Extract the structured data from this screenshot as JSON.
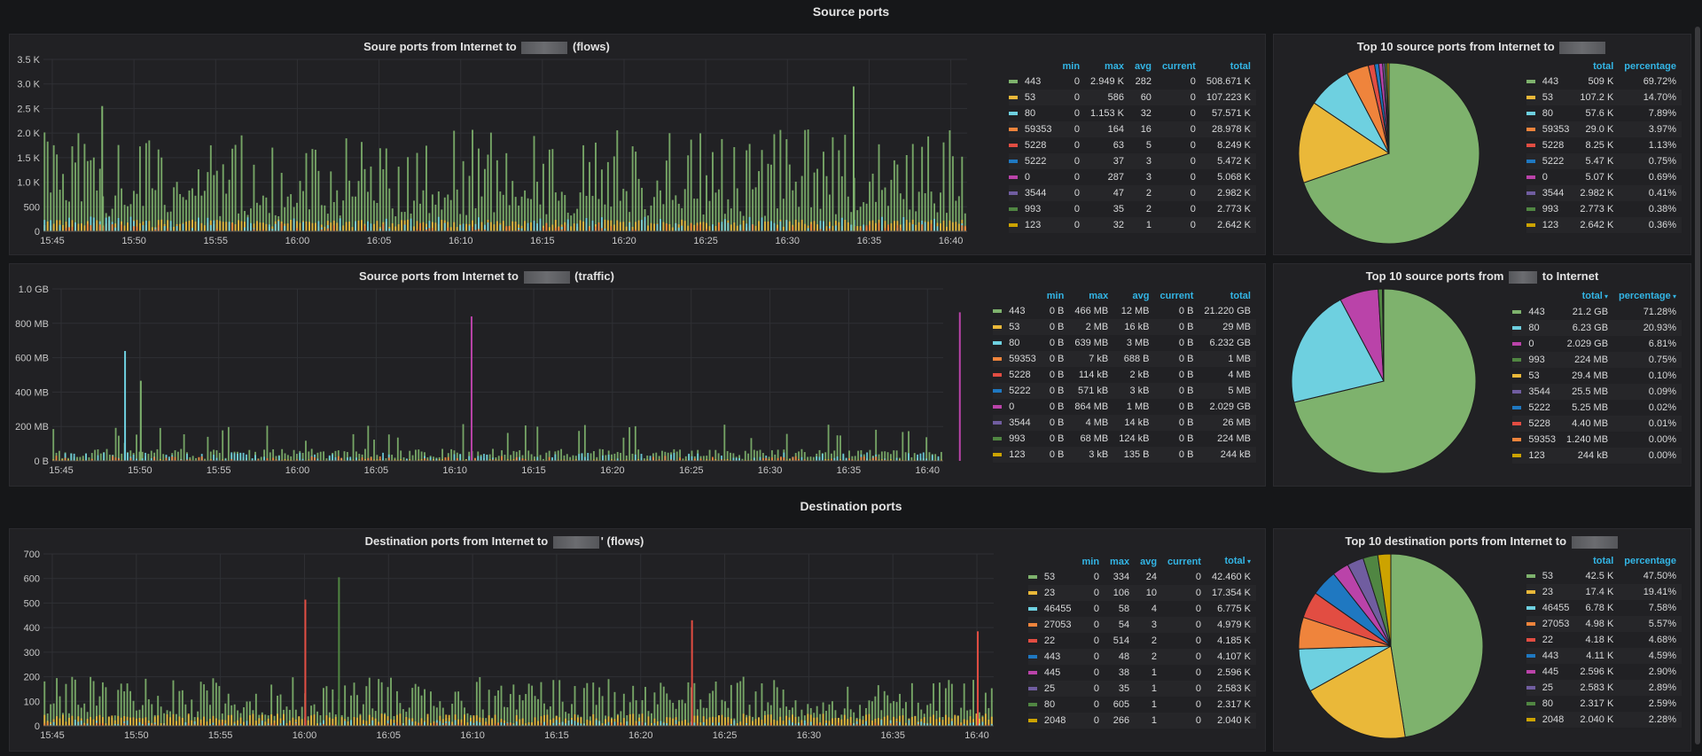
{
  "rows": {
    "source_title": "Source ports",
    "dest_title": "Destination ports"
  },
  "panels": {
    "src_flows": {
      "title_a": "Soure ports from Internet to",
      "title_b": "(flows)",
      "headers": [
        "min",
        "max",
        "avg",
        "current",
        "total"
      ],
      "rows": [
        {
          "name": "443",
          "min": "0",
          "max": "2.949 K",
          "avg": "282",
          "current": "0",
          "total": "508.671 K"
        },
        {
          "name": "53",
          "min": "0",
          "max": "586",
          "avg": "60",
          "current": "0",
          "total": "107.223 K"
        },
        {
          "name": "80",
          "min": "0",
          "max": "1.153 K",
          "avg": "32",
          "current": "0",
          "total": "57.571 K"
        },
        {
          "name": "59353",
          "min": "0",
          "max": "164",
          "avg": "16",
          "current": "0",
          "total": "28.978 K"
        },
        {
          "name": "5228",
          "min": "0",
          "max": "63",
          "avg": "5",
          "current": "0",
          "total": "8.249 K"
        },
        {
          "name": "5222",
          "min": "0",
          "max": "37",
          "avg": "3",
          "current": "0",
          "total": "5.472 K"
        },
        {
          "name": "0",
          "min": "0",
          "max": "287",
          "avg": "3",
          "current": "0",
          "total": "5.068 K"
        },
        {
          "name": "3544",
          "min": "0",
          "max": "47",
          "avg": "2",
          "current": "0",
          "total": "2.982 K"
        },
        {
          "name": "993",
          "min": "0",
          "max": "35",
          "avg": "2",
          "current": "0",
          "total": "2.773 K"
        },
        {
          "name": "123",
          "min": "0",
          "max": "32",
          "avg": "1",
          "current": "0",
          "total": "2.642 K"
        }
      ]
    },
    "src_traffic": {
      "title_a": "Source ports from Internet to",
      "title_b": "(traffic)",
      "headers": [
        "min",
        "max",
        "avg",
        "current",
        "total"
      ],
      "rows": [
        {
          "name": "443",
          "min": "0 B",
          "max": "466 MB",
          "avg": "12 MB",
          "current": "0 B",
          "total": "21.220 GB"
        },
        {
          "name": "53",
          "min": "0 B",
          "max": "2 MB",
          "avg": "16 kB",
          "current": "0 B",
          "total": "29 MB"
        },
        {
          "name": "80",
          "min": "0 B",
          "max": "639 MB",
          "avg": "3 MB",
          "current": "0 B",
          "total": "6.232 GB"
        },
        {
          "name": "59353",
          "min": "0 B",
          "max": "7 kB",
          "avg": "688 B",
          "current": "0 B",
          "total": "1 MB"
        },
        {
          "name": "5228",
          "min": "0 B",
          "max": "114 kB",
          "avg": "2 kB",
          "current": "0 B",
          "total": "4 MB"
        },
        {
          "name": "5222",
          "min": "0 B",
          "max": "571 kB",
          "avg": "3 kB",
          "current": "0 B",
          "total": "5 MB"
        },
        {
          "name": "0",
          "min": "0 B",
          "max": "864 MB",
          "avg": "1 MB",
          "current": "0 B",
          "total": "2.029 GB"
        },
        {
          "name": "3544",
          "min": "0 B",
          "max": "4 MB",
          "avg": "14 kB",
          "current": "0 B",
          "total": "26 MB"
        },
        {
          "name": "993",
          "min": "0 B",
          "max": "68 MB",
          "avg": "124 kB",
          "current": "0 B",
          "total": "224 MB"
        },
        {
          "name": "123",
          "min": "0 B",
          "max": "3 kB",
          "avg": "135 B",
          "current": "0 B",
          "total": "244 kB"
        }
      ]
    },
    "dst_flows": {
      "title_a": "Destination ports from Internet to",
      "title_b": "' (flows)",
      "headers": [
        "min",
        "max",
        "avg",
        "current",
        "total"
      ],
      "sort_mark": "▾",
      "rows": [
        {
          "name": "53",
          "min": "0",
          "max": "334",
          "avg": "24",
          "current": "0",
          "total": "42.460 K"
        },
        {
          "name": "23",
          "min": "0",
          "max": "106",
          "avg": "10",
          "current": "0",
          "total": "17.354 K"
        },
        {
          "name": "46455",
          "min": "0",
          "max": "58",
          "avg": "4",
          "current": "0",
          "total": "6.775 K"
        },
        {
          "name": "27053",
          "min": "0",
          "max": "54",
          "avg": "3",
          "current": "0",
          "total": "4.979 K"
        },
        {
          "name": "22",
          "min": "0",
          "max": "514",
          "avg": "2",
          "current": "0",
          "total": "4.185 K"
        },
        {
          "name": "443",
          "min": "0",
          "max": "48",
          "avg": "2",
          "current": "0",
          "total": "4.107 K"
        },
        {
          "name": "445",
          "min": "0",
          "max": "38",
          "avg": "1",
          "current": "0",
          "total": "2.596 K"
        },
        {
          "name": "25",
          "min": "0",
          "max": "35",
          "avg": "1",
          "current": "0",
          "total": "2.583 K"
        },
        {
          "name": "80",
          "min": "0",
          "max": "605",
          "avg": "1",
          "current": "0",
          "total": "2.317 K"
        },
        {
          "name": "2048",
          "min": "0",
          "max": "266",
          "avg": "1",
          "current": "0",
          "total": "2.040 K"
        }
      ]
    },
    "pie_src_in": {
      "title_a": "Top 10 source ports from Internet to",
      "title_b": "",
      "headers": [
        "total",
        "percentage"
      ],
      "rows": [
        {
          "name": "443",
          "total": "509 K",
          "percentage": "69.72%"
        },
        {
          "name": "53",
          "total": "107.2 K",
          "percentage": "14.70%"
        },
        {
          "name": "80",
          "total": "57.6 K",
          "percentage": "7.89%"
        },
        {
          "name": "59353",
          "total": "29.0 K",
          "percentage": "3.97%"
        },
        {
          "name": "5228",
          "total": "8.25 K",
          "percentage": "1.13%"
        },
        {
          "name": "5222",
          "total": "5.47 K",
          "percentage": "0.75%"
        },
        {
          "name": "0",
          "total": "5.07 K",
          "percentage": "0.69%"
        },
        {
          "name": "3544",
          "total": "2.982 K",
          "percentage": "0.41%"
        },
        {
          "name": "993",
          "total": "2.773 K",
          "percentage": "0.38%"
        },
        {
          "name": "123",
          "total": "2.642 K",
          "percentage": "0.36%"
        }
      ]
    },
    "pie_src_out": {
      "title_a": "Top 10 source ports from",
      "title_b": "to Internet",
      "headers": [
        "total",
        "percentage"
      ],
      "sort_mark": "▾",
      "rows": [
        {
          "name": "443",
          "total": "21.2 GB",
          "percentage": "71.28%"
        },
        {
          "name": "80",
          "total": "6.23 GB",
          "percentage": "20.93%"
        },
        {
          "name": "0",
          "total": "2.029 GB",
          "percentage": "6.81%"
        },
        {
          "name": "993",
          "total": "224 MB",
          "percentage": "0.75%"
        },
        {
          "name": "53",
          "total": "29.4 MB",
          "percentage": "0.10%"
        },
        {
          "name": "3544",
          "total": "25.5 MB",
          "percentage": "0.09%"
        },
        {
          "name": "5222",
          "total": "5.25 MB",
          "percentage": "0.02%"
        },
        {
          "name": "5228",
          "total": "4.40 MB",
          "percentage": "0.01%"
        },
        {
          "name": "59353",
          "total": "1.240 MB",
          "percentage": "0.00%"
        },
        {
          "name": "123",
          "total": "244 kB",
          "percentage": "0.00%"
        }
      ]
    },
    "pie_dst_in": {
      "title_a": "Top 10 destination ports from Internet to",
      "title_b": "",
      "headers": [
        "total",
        "percentage"
      ],
      "rows": [
        {
          "name": "53",
          "total": "42.5 K",
          "percentage": "47.50%"
        },
        {
          "name": "23",
          "total": "17.4 K",
          "percentage": "19.41%"
        },
        {
          "name": "46455",
          "total": "6.78 K",
          "percentage": "7.58%"
        },
        {
          "name": "27053",
          "total": "4.98 K",
          "percentage": "5.57%"
        },
        {
          "name": "22",
          "total": "4.18 K",
          "percentage": "4.68%"
        },
        {
          "name": "443",
          "total": "4.11 K",
          "percentage": "4.59%"
        },
        {
          "name": "445",
          "total": "2.596 K",
          "percentage": "2.90%"
        },
        {
          "name": "25",
          "total": "2.583 K",
          "percentage": "2.89%"
        },
        {
          "name": "80",
          "total": "2.317 K",
          "percentage": "2.59%"
        },
        {
          "name": "2048",
          "total": "2.040 K",
          "percentage": "2.28%"
        }
      ]
    }
  },
  "colors": {
    "src": [
      "#7eb26d",
      "#eab839",
      "#6ed0e0",
      "#ef843c",
      "#e24d42",
      "#1f78c1",
      "#ba43a9",
      "#705da0",
      "#508642",
      "#cca300"
    ],
    "src_out": [
      "#7eb26d",
      "#6ed0e0",
      "#ba43a9",
      "#508642",
      "#eab839",
      "#705da0",
      "#1f78c1",
      "#e24d42",
      "#ef843c",
      "#cca300"
    ],
    "dst": [
      "#7eb26d",
      "#eab839",
      "#6ed0e0",
      "#ef843c",
      "#e24d42",
      "#1f78c1",
      "#ba43a9",
      "#705da0",
      "#508642",
      "#cca300"
    ]
  },
  "chart_data": [
    {
      "type": "bar",
      "panel": "src_flows",
      "x_ticks": [
        "15:45",
        "15:50",
        "15:55",
        "16:00",
        "16:05",
        "16:10",
        "16:15",
        "16:20",
        "16:25",
        "16:30",
        "16:35",
        "16:40"
      ],
      "y_ticks": [
        "0",
        "500",
        "1.0 K",
        "1.5 K",
        "2.0 K",
        "2.5 K",
        "3.0 K",
        "3.5 K"
      ],
      "ylim": [
        0,
        3500
      ],
      "peaks": [
        {
          "series": "443",
          "x": "16:34",
          "value": 2949
        },
        {
          "series": "443",
          "x": "15:48",
          "value": 2550
        }
      ],
      "typical_range": [
        1000,
        2000
      ]
    },
    {
      "type": "bar",
      "panel": "src_traffic",
      "x_ticks": [
        "15:45",
        "15:50",
        "15:55",
        "16:00",
        "16:05",
        "16:10",
        "16:15",
        "16:20",
        "16:25",
        "16:30",
        "16:35",
        "16:40"
      ],
      "y_ticks": [
        "0 B",
        "200 MB",
        "400 MB",
        "600 MB",
        "800 MB",
        "1.0 GB"
      ],
      "ylim": [
        0,
        1000
      ],
      "peaks": [
        {
          "series": "0",
          "x": "16:11",
          "value": 840
        },
        {
          "series": "0",
          "x": "16:42",
          "value": 864
        },
        {
          "series": "80",
          "x": "15:49",
          "value": 639
        },
        {
          "series": "443",
          "x": "15:50",
          "value": 466
        }
      ]
    },
    {
      "type": "bar",
      "panel": "dst_flows",
      "x_ticks": [
        "15:45",
        "15:50",
        "15:55",
        "16:00",
        "16:05",
        "16:10",
        "16:15",
        "16:20",
        "16:25",
        "16:30",
        "16:35",
        "16:40"
      ],
      "y_ticks": [
        "0",
        "100",
        "200",
        "300",
        "400",
        "500",
        "600",
        "700"
      ],
      "ylim": [
        0,
        700
      ],
      "peaks": [
        {
          "series": "80",
          "x": "16:02",
          "value": 605
        },
        {
          "series": "22",
          "x": "16:00",
          "value": 514
        },
        {
          "series": "22",
          "x": "16:23",
          "value": 430
        },
        {
          "series": "22",
          "x": "16:40",
          "value": 385
        }
      ]
    },
    {
      "type": "pie",
      "panel": "pie_src_in",
      "values": [
        69.72,
        14.7,
        7.89,
        3.97,
        1.13,
        0.75,
        0.69,
        0.41,
        0.38,
        0.36
      ]
    },
    {
      "type": "pie",
      "panel": "pie_src_out",
      "values": [
        71.28,
        20.93,
        6.81,
        0.75,
        0.1,
        0.09,
        0.02,
        0.01,
        0.0,
        0.0
      ]
    },
    {
      "type": "pie",
      "panel": "pie_dst_in",
      "values": [
        47.5,
        19.41,
        7.58,
        5.57,
        4.68,
        4.59,
        2.9,
        2.89,
        2.59,
        2.28
      ]
    }
  ]
}
